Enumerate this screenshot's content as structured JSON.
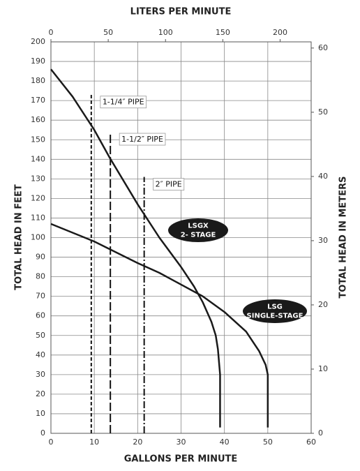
{
  "chart_data": {
    "type": "line",
    "xlabel": "GALLONS PER MINUTE",
    "x2label": "LITERS PER MINUTE",
    "ylabel": "TOTAL HEAD IN FEET",
    "y2label": "TOTAL HEAD IN METERS",
    "xlim": [
      0,
      60
    ],
    "xticks": [
      0,
      10,
      20,
      30,
      40,
      50,
      60
    ],
    "x2lim": [
      0,
      227.1
    ],
    "x2ticks": [
      0,
      50,
      100,
      150,
      200
    ],
    "ylim": [
      0,
      200
    ],
    "yticks": [
      0,
      10,
      20,
      30,
      40,
      50,
      60,
      70,
      80,
      90,
      100,
      110,
      120,
      130,
      140,
      150,
      160,
      170,
      180,
      190,
      200
    ],
    "y2lim": [
      0,
      60.96
    ],
    "y2ticks": [
      0,
      10,
      20,
      30,
      40,
      50,
      60
    ],
    "grid": true,
    "series": [
      {
        "name": [
          "LSGX",
          "2- STAGE"
        ],
        "color": "#1a1a1a",
        "x": [
          0,
          5,
          10,
          13.5,
          20,
          25,
          30,
          33,
          35,
          37,
          38,
          38.5,
          39,
          39
        ],
        "values": [
          186,
          172,
          155,
          141,
          117,
          100,
          85,
          75,
          67,
          57,
          50,
          43,
          30,
          3
        ]
      },
      {
        "name": [
          "LSG",
          "SINGLE-STAGE"
        ],
        "color": "#1a1a1a",
        "x": [
          0,
          10,
          20,
          25,
          30,
          35,
          40,
          45,
          48,
          49.5,
          50,
          50
        ],
        "values": [
          107,
          98,
          87,
          82,
          76,
          70,
          62,
          52,
          42,
          35,
          30,
          3
        ]
      }
    ],
    "pipes": [
      {
        "label": "1-1/4″ PIPE",
        "x": 9.3,
        "top": 173,
        "dash": "short"
      },
      {
        "label": "1-1/2″ PIPE",
        "x": 13.7,
        "top": 154,
        "dash": "long"
      },
      {
        "label": "2″ PIPE",
        "x": 21.5,
        "top": 131,
        "dash": "dash-dot"
      }
    ]
  }
}
